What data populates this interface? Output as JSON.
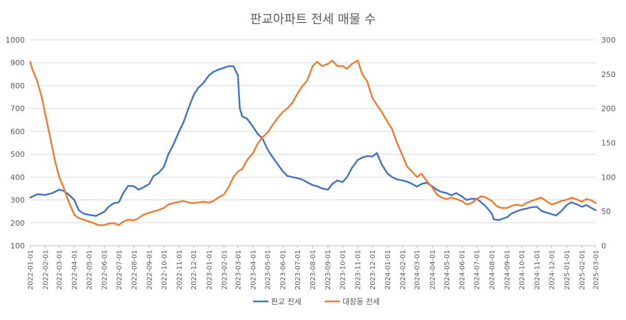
{
  "chart_data": {
    "type": "line",
    "title": "판교아파트 전세 매물 수",
    "y_left": {
      "min": 100,
      "max": 1000,
      "ticks": [
        100,
        200,
        300,
        400,
        500,
        600,
        700,
        800,
        900,
        1000
      ]
    },
    "y_right": {
      "min": 0,
      "max": 300,
      "ticks": [
        0,
        50,
        100,
        150,
        200,
        250,
        300
      ]
    },
    "x": {
      "start": "2022-01-01",
      "end": "2025-03-01",
      "tick_labels": [
        "2022-01-01",
        "2022-02-01",
        "2022-03-01",
        "2022-04-01",
        "2022-05-01",
        "2022-06-01",
        "2022-07-01",
        "2022-08-01",
        "2022-09-01",
        "2022-10-01",
        "2022-11-01",
        "2022-12-01",
        "2023-01-01",
        "2023-02-01",
        "2023-03-01",
        "2023-04-01",
        "2023-05-01",
        "2023-06-01",
        "2023-07-01",
        "2023-08-01",
        "2023-09-01",
        "2023-10-01",
        "2023-11-01",
        "2023-12-01",
        "2024-01-01",
        "2024-02-01",
        "2024-03-01",
        "2024-04-01",
        "2024-05-01",
        "2024-06-01",
        "2024-07-01",
        "2024-08-01",
        "2024-09-01",
        "2024-10-01",
        "2024-11-01",
        "2024-12-01",
        "2025-01-01",
        "2025-02-01",
        "2025-03-01"
      ]
    },
    "grid": true,
    "legend_position": "bottom",
    "series": [
      {
        "name": "판교 전세",
        "axis": "left",
        "color": "#4472C4",
        "points": [
          [
            "2022-01-01",
            310
          ],
          [
            "2022-01-15",
            325
          ],
          [
            "2022-02-01",
            322
          ],
          [
            "2022-02-15",
            330
          ],
          [
            "2022-03-01",
            345
          ],
          [
            "2022-03-10",
            340
          ],
          [
            "2022-03-20",
            325
          ],
          [
            "2022-04-01",
            300
          ],
          [
            "2022-04-10",
            255
          ],
          [
            "2022-04-20",
            240
          ],
          [
            "2022-05-01",
            235
          ],
          [
            "2022-05-15",
            230
          ],
          [
            "2022-06-01",
            248
          ],
          [
            "2022-06-10",
            270
          ],
          [
            "2022-06-20",
            285
          ],
          [
            "2022-07-01",
            290
          ],
          [
            "2022-07-10",
            330
          ],
          [
            "2022-07-20",
            362
          ],
          [
            "2022-08-01",
            360
          ],
          [
            "2022-08-10",
            345
          ],
          [
            "2022-08-20",
            355
          ],
          [
            "2022-09-01",
            370
          ],
          [
            "2022-09-10",
            405
          ],
          [
            "2022-09-20",
            418
          ],
          [
            "2022-10-01",
            445
          ],
          [
            "2022-10-10",
            500
          ],
          [
            "2022-10-20",
            540
          ],
          [
            "2022-11-01",
            600
          ],
          [
            "2022-11-10",
            640
          ],
          [
            "2022-11-20",
            700
          ],
          [
            "2022-12-01",
            760
          ],
          [
            "2022-12-10",
            790
          ],
          [
            "2022-12-20",
            810
          ],
          [
            "2023-01-01",
            845
          ],
          [
            "2023-01-10",
            860
          ],
          [
            "2023-01-20",
            870
          ],
          [
            "2023-02-01",
            878
          ],
          [
            "2023-02-10",
            885
          ],
          [
            "2023-02-20",
            885
          ],
          [
            "2023-03-01",
            845
          ],
          [
            "2023-03-05",
            700
          ],
          [
            "2023-03-10",
            665
          ],
          [
            "2023-03-20",
            655
          ],
          [
            "2023-04-01",
            620
          ],
          [
            "2023-04-10",
            590
          ],
          [
            "2023-04-20",
            570
          ],
          [
            "2023-05-01",
            520
          ],
          [
            "2023-05-10",
            490
          ],
          [
            "2023-05-20",
            460
          ],
          [
            "2023-06-01",
            425
          ],
          [
            "2023-06-10",
            405
          ],
          [
            "2023-06-20",
            400
          ],
          [
            "2023-07-01",
            395
          ],
          [
            "2023-07-10",
            390
          ],
          [
            "2023-07-20",
            378
          ],
          [
            "2023-08-01",
            365
          ],
          [
            "2023-08-10",
            360
          ],
          [
            "2023-08-20",
            350
          ],
          [
            "2023-09-01",
            345
          ],
          [
            "2023-09-10",
            370
          ],
          [
            "2023-09-20",
            385
          ],
          [
            "2023-10-01",
            378
          ],
          [
            "2023-10-10",
            400
          ],
          [
            "2023-10-20",
            440
          ],
          [
            "2023-11-01",
            475
          ],
          [
            "2023-11-10",
            485
          ],
          [
            "2023-11-20",
            492
          ],
          [
            "2023-12-01",
            490
          ],
          [
            "2023-12-10",
            505
          ],
          [
            "2023-12-20",
            455
          ],
          [
            "2024-01-01",
            415
          ],
          [
            "2024-01-10",
            400
          ],
          [
            "2024-01-20",
            390
          ],
          [
            "2024-02-01",
            385
          ],
          [
            "2024-02-10",
            380
          ],
          [
            "2024-02-20",
            370
          ],
          [
            "2024-03-01",
            358
          ],
          [
            "2024-03-10",
            370
          ],
          [
            "2024-03-20",
            375
          ],
          [
            "2024-04-01",
            360
          ],
          [
            "2024-04-10",
            345
          ],
          [
            "2024-04-20",
            335
          ],
          [
            "2024-05-01",
            330
          ],
          [
            "2024-05-10",
            320
          ],
          [
            "2024-05-20",
            330
          ],
          [
            "2024-06-01",
            315
          ],
          [
            "2024-06-10",
            300
          ],
          [
            "2024-06-20",
            305
          ],
          [
            "2024-07-01",
            305
          ],
          [
            "2024-07-10",
            290
          ],
          [
            "2024-07-20",
            270
          ],
          [
            "2024-08-01",
            240
          ],
          [
            "2024-08-05",
            215
          ],
          [
            "2024-08-15",
            212
          ],
          [
            "2024-09-01",
            225
          ],
          [
            "2024-09-10",
            240
          ],
          [
            "2024-09-20",
            250
          ],
          [
            "2024-10-01",
            258
          ],
          [
            "2024-10-10",
            262
          ],
          [
            "2024-10-20",
            268
          ],
          [
            "2024-11-01",
            270
          ],
          [
            "2024-11-10",
            252
          ],
          [
            "2024-11-20",
            245
          ],
          [
            "2024-12-01",
            238
          ],
          [
            "2024-12-10",
            232
          ],
          [
            "2024-12-20",
            250
          ],
          [
            "2025-01-01",
            278
          ],
          [
            "2025-01-10",
            290
          ],
          [
            "2025-01-20",
            282
          ],
          [
            "2025-02-01",
            270
          ],
          [
            "2025-02-10",
            278
          ],
          [
            "2025-02-20",
            265
          ],
          [
            "2025-03-01",
            255
          ]
        ]
      },
      {
        "name": "대장동 전세",
        "axis": "right",
        "color": "#ED7D31",
        "points": [
          [
            "2022-01-01",
            268
          ],
          [
            "2022-01-05",
            258
          ],
          [
            "2022-01-15",
            240
          ],
          [
            "2022-01-25",
            215
          ],
          [
            "2022-02-01",
            190
          ],
          [
            "2022-02-10",
            160
          ],
          [
            "2022-02-20",
            125
          ],
          [
            "2022-03-01",
            100
          ],
          [
            "2022-03-10",
            85
          ],
          [
            "2022-03-20",
            65
          ],
          [
            "2022-04-01",
            45
          ],
          [
            "2022-04-10",
            40
          ],
          [
            "2022-04-20",
            38
          ],
          [
            "2022-05-01",
            35
          ],
          [
            "2022-05-10",
            33
          ],
          [
            "2022-05-20",
            30
          ],
          [
            "2022-06-01",
            30
          ],
          [
            "2022-06-10",
            32
          ],
          [
            "2022-06-20",
            33
          ],
          [
            "2022-07-01",
            30
          ],
          [
            "2022-07-10",
            35
          ],
          [
            "2022-07-20",
            38
          ],
          [
            "2022-08-01",
            37
          ],
          [
            "2022-08-10",
            40
          ],
          [
            "2022-08-20",
            45
          ],
          [
            "2022-09-01",
            48
          ],
          [
            "2022-09-10",
            50
          ],
          [
            "2022-09-20",
            52
          ],
          [
            "2022-10-01",
            55
          ],
          [
            "2022-10-10",
            60
          ],
          [
            "2022-10-20",
            62
          ],
          [
            "2022-11-01",
            64
          ],
          [
            "2022-11-10",
            65
          ],
          [
            "2022-11-20",
            63
          ],
          [
            "2022-12-01",
            62
          ],
          [
            "2022-12-10",
            63
          ],
          [
            "2022-12-20",
            64
          ],
          [
            "2023-01-01",
            63
          ],
          [
            "2023-01-10",
            65
          ],
          [
            "2023-01-20",
            70
          ],
          [
            "2023-02-01",
            75
          ],
          [
            "2023-02-10",
            85
          ],
          [
            "2023-02-20",
            100
          ],
          [
            "2023-03-01",
            108
          ],
          [
            "2023-03-10",
            112
          ],
          [
            "2023-03-20",
            125
          ],
          [
            "2023-04-01",
            135
          ],
          [
            "2023-04-10",
            148
          ],
          [
            "2023-04-20",
            158
          ],
          [
            "2023-05-01",
            165
          ],
          [
            "2023-05-10",
            175
          ],
          [
            "2023-05-20",
            185
          ],
          [
            "2023-06-01",
            195
          ],
          [
            "2023-06-10",
            200
          ],
          [
            "2023-06-20",
            208
          ],
          [
            "2023-07-01",
            222
          ],
          [
            "2023-07-10",
            232
          ],
          [
            "2023-07-20",
            240
          ],
          [
            "2023-08-01",
            262
          ],
          [
            "2023-08-10",
            268
          ],
          [
            "2023-08-20",
            262
          ],
          [
            "2023-09-01",
            265
          ],
          [
            "2023-09-10",
            270
          ],
          [
            "2023-09-20",
            262
          ],
          [
            "2023-10-01",
            262
          ],
          [
            "2023-10-10",
            258
          ],
          [
            "2023-10-20",
            265
          ],
          [
            "2023-11-01",
            270
          ],
          [
            "2023-11-10",
            250
          ],
          [
            "2023-11-20",
            240
          ],
          [
            "2023-12-01",
            215
          ],
          [
            "2023-12-10",
            205
          ],
          [
            "2023-12-20",
            195
          ],
          [
            "2024-01-01",
            180
          ],
          [
            "2024-01-10",
            170
          ],
          [
            "2024-01-20",
            150
          ],
          [
            "2024-02-01",
            130
          ],
          [
            "2024-02-10",
            115
          ],
          [
            "2024-02-20",
            108
          ],
          [
            "2024-03-01",
            100
          ],
          [
            "2024-03-10",
            105
          ],
          [
            "2024-03-20",
            95
          ],
          [
            "2024-04-01",
            85
          ],
          [
            "2024-04-10",
            75
          ],
          [
            "2024-04-20",
            70
          ],
          [
            "2024-05-01",
            68
          ],
          [
            "2024-05-10",
            70
          ],
          [
            "2024-05-20",
            68
          ],
          [
            "2024-06-01",
            65
          ],
          [
            "2024-06-10",
            60
          ],
          [
            "2024-06-20",
            62
          ],
          [
            "2024-07-01",
            68
          ],
          [
            "2024-07-10",
            72
          ],
          [
            "2024-07-20",
            70
          ],
          [
            "2024-08-01",
            65
          ],
          [
            "2024-08-10",
            58
          ],
          [
            "2024-08-20",
            55
          ],
          [
            "2024-09-01",
            55
          ],
          [
            "2024-09-10",
            58
          ],
          [
            "2024-09-20",
            60
          ],
          [
            "2024-10-01",
            58
          ],
          [
            "2024-10-10",
            62
          ],
          [
            "2024-10-20",
            65
          ],
          [
            "2024-11-01",
            68
          ],
          [
            "2024-11-10",
            70
          ],
          [
            "2024-11-20",
            65
          ],
          [
            "2024-12-01",
            60
          ],
          [
            "2024-12-10",
            62
          ],
          [
            "2024-12-20",
            65
          ],
          [
            "2025-01-01",
            67
          ],
          [
            "2025-01-10",
            70
          ],
          [
            "2025-01-20",
            68
          ],
          [
            "2025-02-01",
            64
          ],
          [
            "2025-02-10",
            68
          ],
          [
            "2025-02-20",
            66
          ],
          [
            "2025-03-01",
            62
          ]
        ]
      }
    ]
  }
}
